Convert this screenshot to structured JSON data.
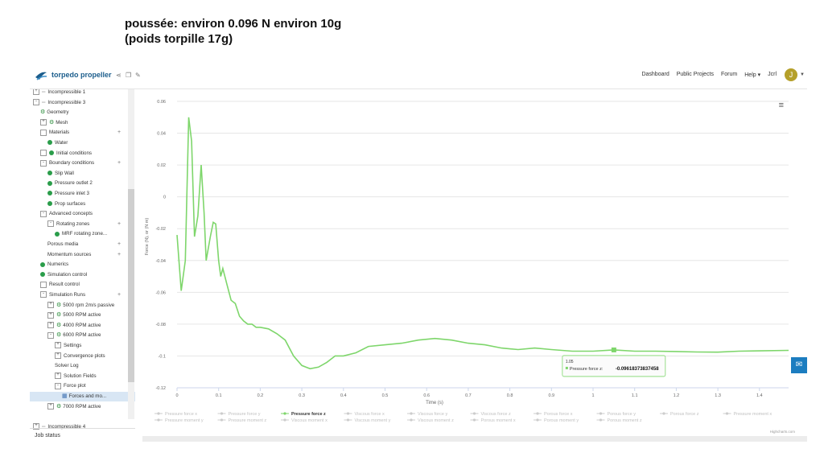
{
  "caption": {
    "line1": "poussée: environ 0.096 N environ 10g",
    "line2": "(poids torpille 17g)"
  },
  "topbar": {
    "project_title": "torpedo propeller",
    "nav": [
      "Dashboard",
      "Public Projects",
      "Forum",
      "Help ▾",
      "Jcrl"
    ],
    "avatar_letter": "J"
  },
  "sidebar": {
    "items": [
      {
        "label": "Incompressible 1",
        "indent": 0,
        "icon": "expand-plus",
        "prefix": "dash"
      },
      {
        "label": "Incompressible 3",
        "indent": 0,
        "icon": "expand-minus",
        "prefix": "dash"
      },
      {
        "label": "Geometry",
        "indent": 1,
        "icon": "gear"
      },
      {
        "label": "Mesh",
        "indent": 1,
        "icon": "gear",
        "expander": "+"
      },
      {
        "label": "Materials",
        "indent": 1,
        "icon": "box",
        "plus": true
      },
      {
        "label": "Water",
        "indent": 2,
        "icon": "check"
      },
      {
        "label": "Initial conditions",
        "indent": 1,
        "icon": "check",
        "box": true
      },
      {
        "label": "Boundary conditions",
        "indent": 1,
        "icon": "box-minus",
        "plus": true
      },
      {
        "label": "Slip Wall",
        "indent": 2,
        "icon": "check"
      },
      {
        "label": "Pressure outlet 2",
        "indent": 2,
        "icon": "check"
      },
      {
        "label": "Pressure inlet 3",
        "indent": 2,
        "icon": "check"
      },
      {
        "label": "Prop surfaces",
        "indent": 2,
        "icon": "check"
      },
      {
        "label": "Advanced concepts",
        "indent": 1,
        "icon": "box-minus"
      },
      {
        "label": "Rotating zones",
        "indent": 2,
        "icon": "box-minus",
        "plus": true
      },
      {
        "label": "MRF rotating zone...",
        "indent": 3,
        "icon": "check"
      },
      {
        "label": "Porous media",
        "indent": 2,
        "icon": "none",
        "plus": true
      },
      {
        "label": "Momentum sources",
        "indent": 2,
        "icon": "none",
        "plus": true
      },
      {
        "label": "Numerics",
        "indent": 1,
        "icon": "check"
      },
      {
        "label": "Simulation control",
        "indent": 1,
        "icon": "check"
      },
      {
        "label": "Result control",
        "indent": 1,
        "icon": "box"
      },
      {
        "label": "Simulation Runs",
        "indent": 1,
        "icon": "box-minus",
        "plus": true
      },
      {
        "label": "5000 rpm 2m/s passive",
        "indent": 2,
        "icon": "gear",
        "expander": "+"
      },
      {
        "label": "5000 RPM active",
        "indent": 2,
        "icon": "gear",
        "expander": "+"
      },
      {
        "label": "4000 RPM active",
        "indent": 2,
        "icon": "gear",
        "expander": "+"
      },
      {
        "label": "6000 RPM active",
        "indent": 2,
        "icon": "gear",
        "expander": "-"
      },
      {
        "label": "Settings",
        "indent": 3,
        "icon": "none",
        "expander": "+"
      },
      {
        "label": "Convergence plots",
        "indent": 3,
        "icon": "none",
        "expander": "+"
      },
      {
        "label": "Solver Log",
        "indent": 3,
        "icon": "none"
      },
      {
        "label": "Solution Fields",
        "indent": 3,
        "icon": "none",
        "expander": "+"
      },
      {
        "label": "Force plot",
        "indent": 3,
        "icon": "none",
        "expander": "-"
      },
      {
        "label": "Forces and mo...",
        "indent": 4,
        "icon": "chart",
        "selected": true
      },
      {
        "label": "7000 RPM active",
        "indent": 2,
        "icon": "gear",
        "expander": "+"
      },
      {
        "label": "",
        "indent": 0,
        "icon": "none"
      },
      {
        "label": "Incompressible 4",
        "indent": 0,
        "icon": "expand-plus",
        "prefix": "dash"
      }
    ],
    "job_status": "Job status"
  },
  "chart_data": {
    "type": "line",
    "xlabel": "Time (s)",
    "ylabel": "Force (N), or (N m)",
    "xlim": [
      0,
      1.47
    ],
    "ylim": [
      -0.12,
      0.06
    ],
    "x_ticks": [
      "0",
      "0.1",
      "0.2",
      "0.3",
      "0.4",
      "0.5",
      "0.6",
      "0.7",
      "0.8",
      "0.9",
      "1",
      "1.1",
      "1.2",
      "1.3",
      "1.4"
    ],
    "y_ticks": [
      "0.06",
      "0.04",
      "0.02",
      "0",
      "-0.02",
      "-0.04",
      "-0.06",
      "-0.08",
      "-0.1",
      "-0.12"
    ],
    "series": [
      {
        "name": "Pressure force z",
        "color": "#7ed66b",
        "points": [
          [
            0.0,
            -0.024
          ],
          [
            0.01,
            -0.059
          ],
          [
            0.02,
            -0.04
          ],
          [
            0.028,
            0.05
          ],
          [
            0.035,
            0.035
          ],
          [
            0.042,
            -0.025
          ],
          [
            0.05,
            -0.012
          ],
          [
            0.058,
            0.02
          ],
          [
            0.065,
            -0.01
          ],
          [
            0.07,
            -0.04
          ],
          [
            0.08,
            -0.025
          ],
          [
            0.087,
            -0.016
          ],
          [
            0.093,
            -0.017
          ],
          [
            0.1,
            -0.04
          ],
          [
            0.105,
            -0.05
          ],
          [
            0.11,
            -0.045
          ],
          [
            0.12,
            -0.055
          ],
          [
            0.13,
            -0.065
          ],
          [
            0.14,
            -0.067
          ],
          [
            0.15,
            -0.075
          ],
          [
            0.16,
            -0.078
          ],
          [
            0.17,
            -0.08
          ],
          [
            0.18,
            -0.08
          ],
          [
            0.19,
            -0.082
          ],
          [
            0.2,
            -0.082
          ],
          [
            0.22,
            -0.083
          ],
          [
            0.24,
            -0.086
          ],
          [
            0.26,
            -0.09
          ],
          [
            0.28,
            -0.1
          ],
          [
            0.3,
            -0.106
          ],
          [
            0.32,
            -0.108
          ],
          [
            0.34,
            -0.107
          ],
          [
            0.36,
            -0.104
          ],
          [
            0.38,
            -0.1
          ],
          [
            0.4,
            -0.1
          ],
          [
            0.43,
            -0.098
          ],
          [
            0.46,
            -0.094
          ],
          [
            0.5,
            -0.093
          ],
          [
            0.54,
            -0.092
          ],
          [
            0.58,
            -0.09
          ],
          [
            0.62,
            -0.089
          ],
          [
            0.66,
            -0.09
          ],
          [
            0.7,
            -0.092
          ],
          [
            0.74,
            -0.093
          ],
          [
            0.78,
            -0.095
          ],
          [
            0.82,
            -0.096
          ],
          [
            0.86,
            -0.095
          ],
          [
            0.9,
            -0.096
          ],
          [
            0.95,
            -0.097
          ],
          [
            1.0,
            -0.097
          ],
          [
            1.05,
            -0.0962
          ],
          [
            1.1,
            -0.097
          ],
          [
            1.15,
            -0.097
          ],
          [
            1.2,
            -0.0972
          ],
          [
            1.25,
            -0.0975
          ],
          [
            1.3,
            -0.0976
          ],
          [
            1.35,
            -0.097
          ],
          [
            1.4,
            -0.0968
          ],
          [
            1.47,
            -0.0965
          ]
        ]
      }
    ],
    "tooltip": {
      "x_label": "1.05",
      "series_label": "Pressure force z:",
      "value_text": "-0.0961837383745​8",
      "x": 1.05,
      "y": -0.0962
    },
    "legend": [
      "Pressure force x",
      "Pressure force y",
      "Pressure force z",
      "Viscous force x",
      "Viscous force y",
      "Viscous force z",
      "Porous force x",
      "Porous force y",
      "Porous force z",
      "Pressure moment x",
      "Pressure moment y",
      "Pressure moment z",
      "Viscous moment x",
      "Viscous moment y",
      "Viscous moment z",
      "Porous moment x",
      "Porous moment y",
      "Porous moment z"
    ],
    "active_legend": "Pressure force z",
    "credit": "Highcharts.com"
  }
}
